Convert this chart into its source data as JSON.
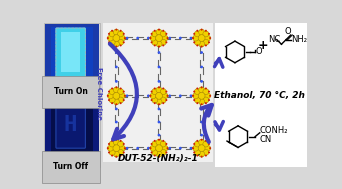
{
  "bg_color": "#d8d8d8",
  "arrow_color": "#4040bb",
  "yellow_color": "#f0d000",
  "turn_on_label": "Turn On",
  "turn_off_label": "Turn Off",
  "free_chlorine_label": "Free Chlorine",
  "mof_label": "DUT-52-(NH₂)₂-1′",
  "reaction_condition": "Ethanol, 70 °C, 2h",
  "dark_blue_bg": "#0c1a7a",
  "medium_blue": "#1a3aaa",
  "cyan_color": "#40d0e8",
  "bright_cyan": "#90f0ff",
  "label_bg": "#c8c8c8",
  "red_color": "#cc2200",
  "gray_linker": "#666666",
  "blue_N": "#3355ee",
  "white": "#ffffff"
}
